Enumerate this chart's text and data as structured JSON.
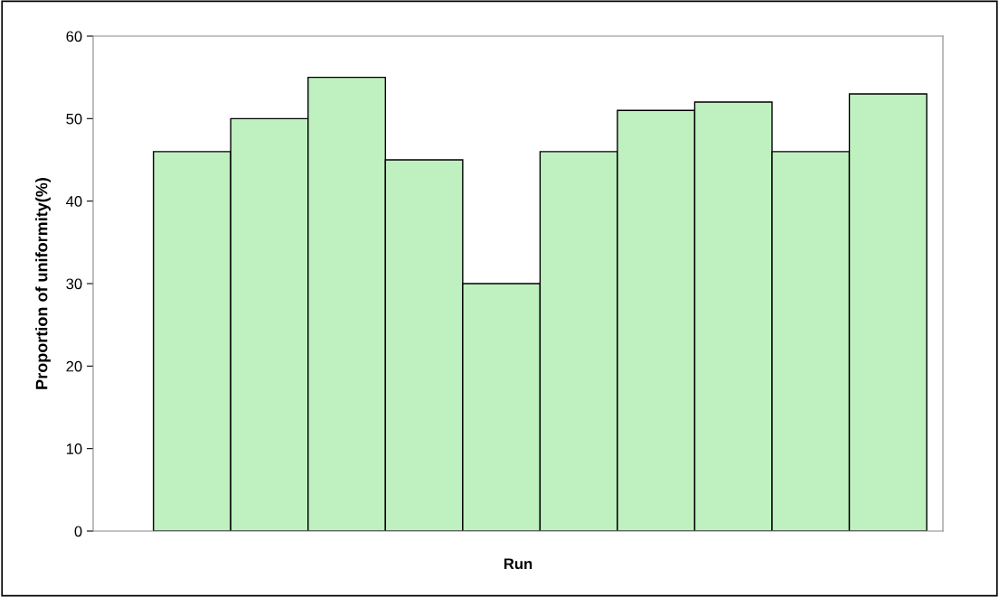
{
  "chart_data": {
    "type": "bar",
    "xlabel": "Run",
    "ylabel": "Proportion of uniformity(%)",
    "categories": [
      null,
      null,
      null,
      null,
      null,
      null,
      null,
      null,
      null,
      null
    ],
    "values": [
      46,
      50,
      55,
      45,
      30,
      46,
      51,
      52,
      46,
      53
    ],
    "color": "#bff0bf",
    "ylim": [
      0,
      60
    ],
    "yticks": [
      0,
      10,
      20,
      30,
      40,
      50,
      60
    ],
    "grid": false
  }
}
